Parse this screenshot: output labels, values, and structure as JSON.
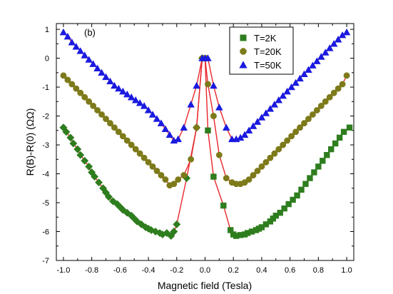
{
  "chart_data": {
    "type": "scatter",
    "panel_label": "(b)",
    "xlabel": "Magnetic field (Tesla)",
    "ylabel": "R(B)-R(0) (ΩΩ)",
    "xlim": [
      -1.05,
      1.05
    ],
    "ylim": [
      -7,
      1.2
    ],
    "x_ticks": [
      -1.0,
      -0.8,
      -0.6,
      -0.4,
      -0.2,
      0.0,
      0.2,
      0.4,
      0.6,
      0.8,
      1.0
    ],
    "x_tick_labels": [
      "-1.0",
      "-0.8",
      "-0.6",
      "-0.4",
      "-0.2",
      "0.0",
      "0.2",
      "0.4",
      "0.6",
      "0.8",
      "1.0"
    ],
    "y_ticks": [
      -7,
      -6,
      -5,
      -4,
      -3,
      -2,
      -1,
      0,
      1
    ],
    "y_tick_labels": [
      "-7",
      "-6",
      "-5",
      "-4",
      "-3",
      "-2",
      "-1",
      "0",
      "1"
    ],
    "grid": false,
    "legend_position": "top-right",
    "line_color": "#e8262a",
    "series": [
      {
        "name": "T=2K",
        "marker": "square",
        "left_marker": "diamond",
        "color": "#2e7d1e",
        "x": [
          -1.0,
          -0.98,
          -0.95,
          -0.93,
          -0.9,
          -0.88,
          -0.85,
          -0.82,
          -0.8,
          -0.78,
          -0.75,
          -0.72,
          -0.7,
          -0.68,
          -0.65,
          -0.62,
          -0.6,
          -0.58,
          -0.55,
          -0.52,
          -0.5,
          -0.48,
          -0.45,
          -0.42,
          -0.4,
          -0.38,
          -0.35,
          -0.32,
          -0.3,
          -0.27,
          -0.24,
          -0.22,
          -0.2,
          -0.13,
          -0.06,
          -0.02,
          0.0,
          0.02,
          0.06,
          0.13,
          0.18,
          0.2,
          0.22,
          0.25,
          0.28,
          0.3,
          0.33,
          0.36,
          0.38,
          0.4,
          0.43,
          0.46,
          0.48,
          0.5,
          0.53,
          0.56,
          0.59,
          0.62,
          0.65,
          0.68,
          0.71,
          0.74,
          0.77,
          0.8,
          0.83,
          0.86,
          0.89,
          0.92,
          0.95,
          0.98,
          1.02
        ],
        "y": [
          -2.4,
          -2.55,
          -2.75,
          -2.95,
          -3.15,
          -3.35,
          -3.55,
          -3.75,
          -3.95,
          -4.1,
          -4.3,
          -4.5,
          -4.65,
          -4.8,
          -4.95,
          -5.05,
          -5.15,
          -5.25,
          -5.35,
          -5.45,
          -5.55,
          -5.65,
          -5.75,
          -5.85,
          -5.9,
          -5.95,
          -6.0,
          -6.05,
          -6.1,
          -6.05,
          -6.15,
          -6.0,
          -5.75,
          -4.15,
          -2.4,
          0.0,
          0.0,
          -2.5,
          -4.1,
          -5.1,
          -5.95,
          -6.1,
          -6.15,
          -6.12,
          -6.1,
          -6.05,
          -6.0,
          -5.95,
          -5.9,
          -5.85,
          -5.75,
          -5.65,
          -5.55,
          -5.45,
          -5.35,
          -5.2,
          -5.05,
          -4.9,
          -4.75,
          -4.55,
          -4.35,
          -4.15,
          -3.95,
          -3.75,
          -3.55,
          -3.35,
          -3.15,
          -2.95,
          -2.75,
          -2.55,
          -2.4
        ]
      },
      {
        "name": "T=20K",
        "marker": "octagon",
        "color": "#7d7a1a",
        "x": [
          -1.0,
          -0.97,
          -0.94,
          -0.91,
          -0.88,
          -0.85,
          -0.82,
          -0.79,
          -0.76,
          -0.73,
          -0.7,
          -0.67,
          -0.64,
          -0.61,
          -0.58,
          -0.55,
          -0.52,
          -0.49,
          -0.46,
          -0.43,
          -0.4,
          -0.37,
          -0.34,
          -0.31,
          -0.28,
          -0.25,
          -0.22,
          -0.19,
          -0.15,
          -0.1,
          -0.06,
          -0.02,
          0.0,
          0.02,
          0.06,
          0.1,
          0.15,
          0.19,
          0.22,
          0.25,
          0.28,
          0.31,
          0.34,
          0.37,
          0.4,
          0.43,
          0.46,
          0.49,
          0.52,
          0.55,
          0.58,
          0.61,
          0.64,
          0.67,
          0.7,
          0.73,
          0.76,
          0.79,
          0.82,
          0.85,
          0.88,
          0.91,
          0.94,
          0.97,
          1.0
        ],
        "y": [
          -0.6,
          -0.75,
          -0.9,
          -1.05,
          -1.2,
          -1.35,
          -1.5,
          -1.65,
          -1.8,
          -1.95,
          -2.1,
          -2.25,
          -2.4,
          -2.55,
          -2.7,
          -2.85,
          -3.0,
          -3.15,
          -3.3,
          -3.45,
          -3.6,
          -3.75,
          -3.9,
          -4.05,
          -4.2,
          -4.4,
          -4.35,
          -4.2,
          -4.05,
          -3.5,
          -2.4,
          0.0,
          0.0,
          -0.9,
          -2.0,
          -3.35,
          -4.15,
          -4.3,
          -4.35,
          -4.35,
          -4.3,
          -4.2,
          -4.05,
          -3.9,
          -3.75,
          -3.6,
          -3.45,
          -3.3,
          -3.15,
          -3.0,
          -2.85,
          -2.7,
          -2.55,
          -2.4,
          -2.25,
          -2.1,
          -1.95,
          -1.8,
          -1.65,
          -1.5,
          -1.35,
          -1.2,
          -1.05,
          -0.9,
          -0.6
        ]
      },
      {
        "name": "T=50K",
        "marker": "triangle",
        "color": "#1a1ae0",
        "x": [
          -1.0,
          -0.97,
          -0.94,
          -0.91,
          -0.88,
          -0.85,
          -0.82,
          -0.79,
          -0.76,
          -0.73,
          -0.7,
          -0.67,
          -0.64,
          -0.61,
          -0.58,
          -0.55,
          -0.52,
          -0.49,
          -0.46,
          -0.43,
          -0.4,
          -0.37,
          -0.34,
          -0.31,
          -0.28,
          -0.25,
          -0.22,
          -0.19,
          -0.15,
          -0.1,
          -0.06,
          -0.02,
          0.0,
          0.02,
          0.06,
          0.1,
          0.15,
          0.19,
          0.22,
          0.25,
          0.28,
          0.31,
          0.34,
          0.37,
          0.4,
          0.43,
          0.46,
          0.49,
          0.52,
          0.55,
          0.58,
          0.61,
          0.64,
          0.67,
          0.7,
          0.73,
          0.76,
          0.79,
          0.82,
          0.85,
          0.88,
          0.91,
          0.94,
          0.97,
          1.0
        ],
        "y": [
          0.9,
          0.75,
          0.55,
          0.4,
          0.25,
          0.1,
          -0.05,
          -0.2,
          -0.35,
          -0.5,
          -0.65,
          -0.8,
          -0.95,
          -1.05,
          -1.15,
          -1.25,
          -1.35,
          -1.45,
          -1.55,
          -1.65,
          -1.8,
          -1.95,
          -2.1,
          -2.25,
          -2.45,
          -2.65,
          -2.85,
          -2.8,
          -2.4,
          -1.6,
          -0.95,
          0.0,
          0.0,
          0.0,
          -0.95,
          -1.7,
          -2.4,
          -2.8,
          -2.8,
          -2.75,
          -2.65,
          -2.5,
          -2.35,
          -2.2,
          -2.05,
          -1.9,
          -1.75,
          -1.6,
          -1.45,
          -1.3,
          -1.15,
          -1.0,
          -0.85,
          -0.7,
          -0.55,
          -0.4,
          -0.25,
          -0.1,
          0.05,
          0.2,
          0.35,
          0.5,
          0.65,
          0.8,
          0.9
        ]
      }
    ]
  }
}
